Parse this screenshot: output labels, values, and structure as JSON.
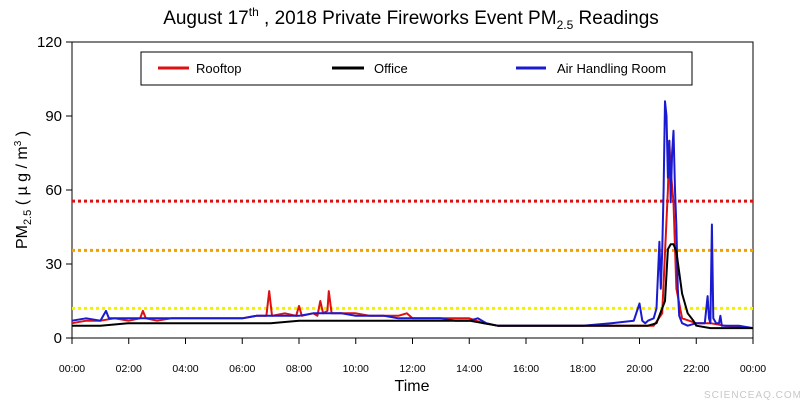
{
  "chart_data": {
    "type": "line",
    "title": {
      "prefix": "August 17",
      "sup": "th",
      "middle": " , 2018 Private Fireworks Event PM",
      "sub": "2.5",
      "suffix": " Readings"
    },
    "xlabel": "Time",
    "ylabel": {
      "main": "PM",
      "sub": "2.5",
      "unit_open": " ( µ g / m",
      "unit_sup": "3",
      "unit_close": " )"
    },
    "x_ticks": [
      "00:00",
      "02:00",
      "04:00",
      "06:00",
      "08:00",
      "10:00",
      "12:00",
      "14:00",
      "16:00",
      "18:00",
      "20:00",
      "22:00",
      "00:00"
    ],
    "x_range_hours": [
      0,
      24
    ],
    "y_ticks": [
      "0",
      "30",
      "60",
      "90",
      "120"
    ],
    "ylim": [
      0,
      120
    ],
    "grid": false,
    "legend_position": "top",
    "reference_lines": [
      {
        "y": 55.5,
        "color": "#dd1111",
        "style": "dotted"
      },
      {
        "y": 35.5,
        "color": "#f0a000",
        "style": "dotted"
      },
      {
        "y": 12,
        "color": "#f5f000",
        "style": "dotted"
      }
    ],
    "series": [
      {
        "name": "Rooftop",
        "color": "#dd1111",
        "x": [
          0,
          0.5,
          1,
          1.5,
          2,
          2.4,
          2.5,
          2.6,
          3,
          3.5,
          4,
          4.5,
          5,
          5.5,
          6,
          6.5,
          6.85,
          6.95,
          7.05,
          7.5,
          7.9,
          8,
          8.1,
          8.5,
          8.65,
          8.75,
          8.85,
          9,
          9.05,
          9.15,
          9.5,
          10,
          10.5,
          11,
          11.5,
          11.8,
          12,
          13,
          14,
          14.5,
          15,
          16,
          17,
          18,
          19,
          20,
          20.5,
          20.8,
          21,
          21.05,
          21.1,
          21.2,
          21.3,
          21.5,
          22,
          22.5,
          23,
          24
        ],
        "y": [
          6,
          7,
          7,
          8,
          7,
          8,
          11,
          8,
          7,
          8,
          8,
          8,
          8,
          8,
          8,
          9,
          9,
          19,
          9,
          10,
          9,
          13,
          9,
          10,
          9,
          15,
          10,
          11,
          19,
          10,
          10,
          10,
          9,
          9,
          9,
          10,
          8,
          8,
          8,
          6,
          5,
          5,
          5,
          5,
          5,
          5,
          5,
          10,
          60,
          80,
          68,
          55,
          20,
          8,
          6,
          6,
          5,
          4
        ]
      },
      {
        "name": "Office",
        "color": "#000000",
        "x": [
          0,
          1,
          2,
          3,
          4,
          5,
          6,
          7,
          8,
          9,
          10,
          11,
          12,
          13,
          14,
          14.5,
          15,
          16,
          17,
          18,
          19,
          20,
          20.3,
          20.6,
          20.9,
          21,
          21.1,
          21.2,
          21.3,
          21.5,
          21.7,
          21.9,
          22,
          22.5,
          23,
          24
        ],
        "y": [
          5,
          5,
          6,
          6,
          6,
          6,
          6,
          6,
          7,
          7,
          7,
          7,
          7,
          7,
          7,
          6,
          5,
          5,
          5,
          5,
          5,
          5,
          5,
          6,
          15,
          36,
          38,
          38,
          35,
          18,
          10,
          7,
          5,
          4,
          4,
          4
        ]
      },
      {
        "name": "Air Handling Room",
        "color": "#1a1ad0",
        "x": [
          0,
          0.5,
          1,
          1.2,
          1.3,
          1.5,
          2,
          2.5,
          3,
          3.5,
          4,
          4.5,
          5,
          5.5,
          6,
          6.5,
          7,
          7.5,
          8,
          8.5,
          9,
          9.5,
          10,
          10.5,
          11,
          11.5,
          12,
          12.5,
          13,
          13.5,
          14,
          14.3,
          14.6,
          15,
          15.5,
          16,
          17,
          18,
          19,
          19.8,
          20,
          20.1,
          20.2,
          20.3,
          20.5,
          20.6,
          20.7,
          20.75,
          20.8,
          20.85,
          20.9,
          20.95,
          21,
          21.05,
          21.1,
          21.15,
          21.2,
          21.25,
          21.3,
          21.35,
          21.4,
          21.5,
          21.7,
          22,
          22.3,
          22.4,
          22.45,
          22.5,
          22.55,
          22.6,
          22.7,
          22.8,
          22.85,
          22.9,
          23,
          23.5,
          24
        ],
        "y": [
          7,
          8,
          7,
          11,
          8,
          8,
          8,
          8,
          8,
          8,
          8,
          8,
          8,
          8,
          8,
          9,
          9,
          9,
          9,
          10,
          10,
          10,
          9,
          9,
          9,
          8,
          8,
          8,
          8,
          7,
          7,
          8,
          6,
          5,
          5,
          5,
          5,
          5,
          6,
          7,
          14,
          7,
          6,
          7,
          8,
          12,
          39,
          20,
          35,
          60,
          96,
          90,
          65,
          80,
          55,
          75,
          84,
          60,
          45,
          20,
          9,
          6,
          5,
          6,
          6,
          17,
          8,
          6,
          46,
          8,
          6,
          6,
          9,
          5,
          5,
          5,
          4
        ]
      }
    ]
  },
  "watermark": "SCIENCEAQ.COM"
}
